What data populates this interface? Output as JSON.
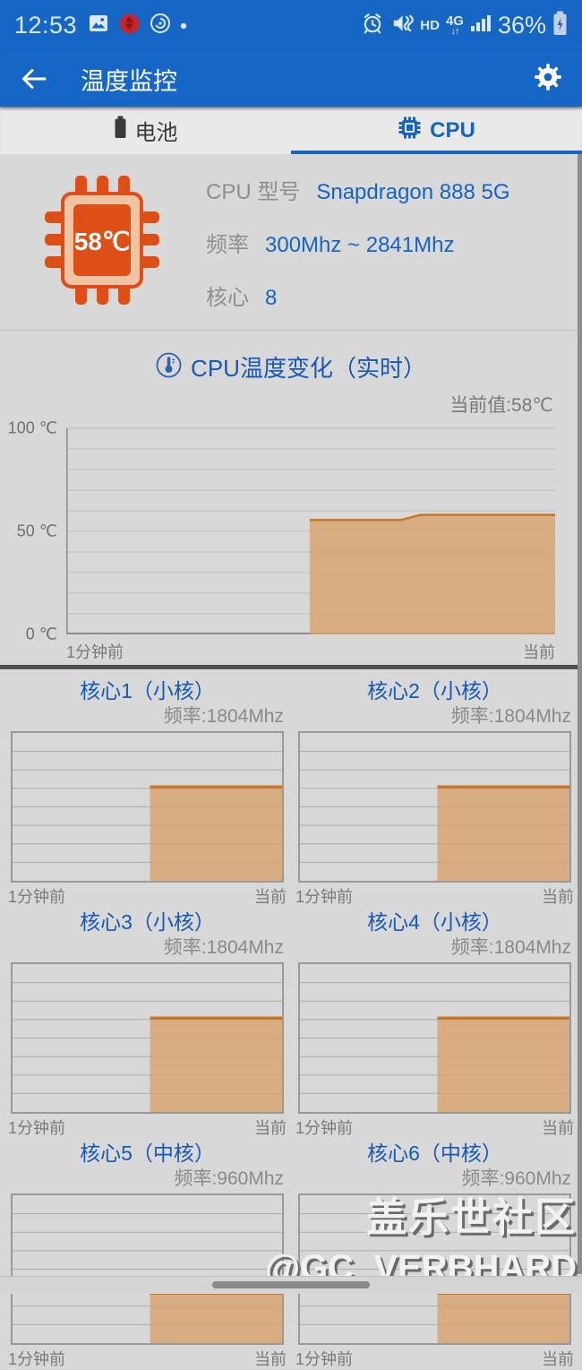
{
  "status_bar": {
    "time": "12:53",
    "left_icons": [
      "gallery-icon",
      "red-app-icon",
      "music-app-icon",
      "notification-dot"
    ],
    "hd_label": "HD",
    "network_label": "4G",
    "network_arrows": "↓↑",
    "battery_percent": "36%",
    "right_icons": [
      "alarm-icon",
      "vibrate-mute-icon",
      "signal-icon",
      "battery-charging-icon"
    ]
  },
  "app_bar": {
    "title": "温度监控"
  },
  "tabs": {
    "battery_label": "电池",
    "cpu_label": "CPU",
    "active_tab": "CPU"
  },
  "cpu_info": {
    "temp_badge": "58℃",
    "rows": [
      {
        "label": "CPU 型号",
        "value": "Snapdragon 888 5G"
      },
      {
        "label": "频率",
        "value": "300Mhz ~ 2841Mhz"
      },
      {
        "label": "核心",
        "value": "8"
      }
    ]
  },
  "temp_section": {
    "title": "CPU温度变化（实时）",
    "current_value": "当前值:58℃",
    "y_tick_100": "100 ℃",
    "y_tick_50": "50 ℃",
    "y_tick_0": "0 ℃"
  },
  "chart_labels": {
    "start": "1分钟前",
    "end": "当前"
  },
  "cores": [
    {
      "id": "core1",
      "title": "核心1（小核）",
      "freq_label": "频率:1804Mhz"
    },
    {
      "id": "core2",
      "title": "核心2（小核）",
      "freq_label": "频率:1804Mhz"
    },
    {
      "id": "core3",
      "title": "核心3（小核）",
      "freq_label": "频率:1804Mhz"
    },
    {
      "id": "core4",
      "title": "核心4（小核）",
      "freq_label": "频率:1804Mhz"
    },
    {
      "id": "core5",
      "title": "核心5（中核）",
      "freq_label": "频率:960Mhz"
    },
    {
      "id": "core6",
      "title": "核心6（中核）",
      "freq_label": "频率:960Mhz"
    }
  ],
  "watermark": {
    "line1": "盖乐世社区",
    "line2": "@GC_VERBHARD"
  },
  "colors": {
    "bar_blue": "#1666C5",
    "accent_blue": "#1565C0",
    "title_blue": "#1659B5",
    "area_fill": "#D7A26C",
    "area_stroke": "#C4762B",
    "chip_orange": "#DD4F16",
    "chip_peach": "#EFC3A3"
  },
  "chart_data": [
    {
      "id": "temp",
      "type": "area",
      "title": "CPU温度变化（实时）",
      "current_value_text": "当前值:58℃",
      "xlabel_start": "1分钟前",
      "xlabel_end": "当前",
      "y_ticks": [
        {
          "label": "100 ℃",
          "value": 100
        },
        {
          "label": "50 ℃",
          "value": 50
        },
        {
          "label": "0 ℃",
          "value": 0
        }
      ],
      "ylim": [
        0,
        100
      ],
      "grid_divisions": 10,
      "style": "axes",
      "series_name": "CPU温度(℃)",
      "points": [
        [
          0.498,
          55.5
        ],
        [
          0.685,
          55.5
        ],
        [
          0.725,
          58
        ],
        [
          1.0,
          58
        ]
      ],
      "fill": "#D7A26C",
      "stroke": "#C4762B",
      "stroke_width": 2.5,
      "fill_opacity": 0.8
    },
    {
      "id": "core1",
      "type": "area",
      "title": "核心1（小核）",
      "series_name": "核心1频率(Mhz)",
      "current_value": 1804,
      "ylim": [
        0,
        2841
      ],
      "grid_divisions": 8,
      "style": "box",
      "xlabel_start": "1分钟前",
      "xlabel_end": "当前",
      "points": [
        [
          0.51,
          1804
        ],
        [
          1.0,
          1804
        ]
      ],
      "fill": "#D7A26C",
      "stroke": "#C4762B",
      "stroke_width": 3.5,
      "fill_opacity": 0.8
    },
    {
      "id": "core2",
      "type": "area",
      "title": "核心2（小核）",
      "series_name": "核心2频率(Mhz)",
      "current_value": 1804,
      "ylim": [
        0,
        2841
      ],
      "grid_divisions": 8,
      "style": "box",
      "xlabel_start": "1分钟前",
      "xlabel_end": "当前",
      "points": [
        [
          0.51,
          1804
        ],
        [
          1.0,
          1804
        ]
      ],
      "fill": "#D7A26C",
      "stroke": "#C4762B",
      "stroke_width": 3.5,
      "fill_opacity": 0.8
    },
    {
      "id": "core3",
      "type": "area",
      "title": "核心3（小核）",
      "series_name": "核心3频率(Mhz)",
      "current_value": 1804,
      "ylim": [
        0,
        2841
      ],
      "grid_divisions": 8,
      "style": "box",
      "xlabel_start": "1分钟前",
      "xlabel_end": "当前",
      "points": [
        [
          0.51,
          1804
        ],
        [
          1.0,
          1804
        ]
      ],
      "fill": "#D7A26C",
      "stroke": "#C4762B",
      "stroke_width": 3.5,
      "fill_opacity": 0.8
    },
    {
      "id": "core4",
      "type": "area",
      "title": "核心4（小核）",
      "series_name": "核心4频率(Mhz)",
      "current_value": 1804,
      "ylim": [
        0,
        2841
      ],
      "grid_divisions": 8,
      "style": "box",
      "xlabel_start": "1分钟前",
      "xlabel_end": "当前",
      "points": [
        [
          0.51,
          1804
        ],
        [
          1.0,
          1804
        ]
      ],
      "fill": "#D7A26C",
      "stroke": "#C4762B",
      "stroke_width": 3.5,
      "fill_opacity": 0.8
    },
    {
      "id": "core5",
      "type": "area",
      "title": "核心5（中核）",
      "series_name": "核心5频率(Mhz)",
      "current_value": 960,
      "ylim": [
        0,
        2841
      ],
      "grid_divisions": 8,
      "style": "box",
      "xlabel_start": "1分钟前",
      "xlabel_end": "当前",
      "points": [
        [
          0.51,
          960
        ],
        [
          1.0,
          960
        ]
      ],
      "fill": "#D7A26C",
      "stroke": "#C4762B",
      "stroke_width": 3.5,
      "fill_opacity": 0.8
    },
    {
      "id": "core6",
      "type": "area",
      "title": "核心6（中核）",
      "series_name": "核心6频率(Mhz)",
      "current_value": 960,
      "ylim": [
        0,
        2841
      ],
      "grid_divisions": 8,
      "style": "box",
      "xlabel_start": "1分钟前",
      "xlabel_end": "当前",
      "points": [
        [
          0.51,
          960
        ],
        [
          1.0,
          960
        ]
      ],
      "fill": "#D7A26C",
      "stroke": "#C4762B",
      "stroke_width": 3.5,
      "fill_opacity": 0.8
    }
  ]
}
